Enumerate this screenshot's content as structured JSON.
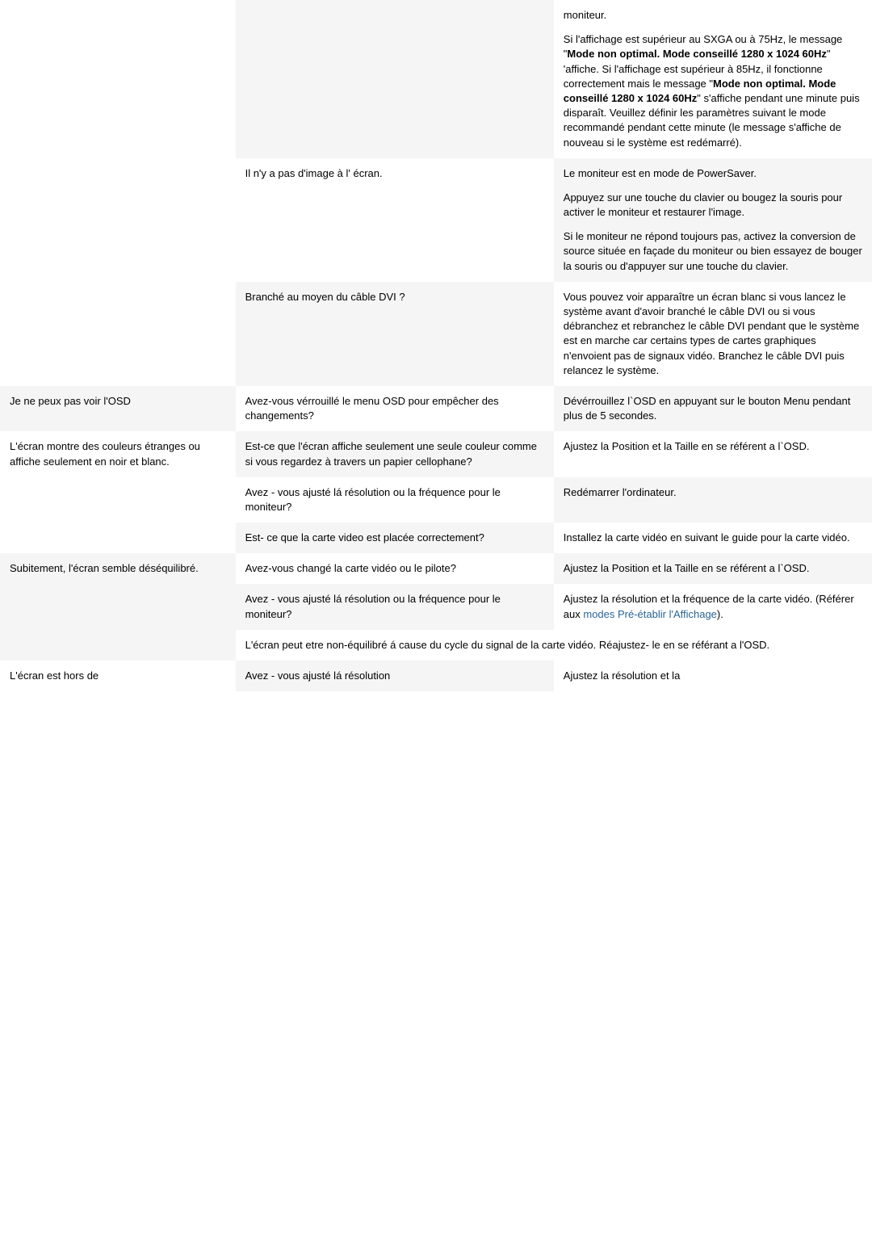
{
  "rows": [
    {
      "c1": {
        "bg": "white",
        "blocks": []
      },
      "c2": {
        "bg": "gray",
        "blocks": []
      },
      "c3": {
        "bg": "white",
        "blocks": [
          {
            "type": "p",
            "text": "moniteur."
          },
          {
            "type": "rich",
            "runs": [
              {
                "t": "Si l'affichage est supérieur au SXGA ou à 75Hz, le message \""
              },
              {
                "t": "Mode non optimal. Mode conseillé 1280 x 1024 60Hz",
                "b": true
              },
              {
                "t": "\" 'affiche. Si l'affichage est supérieur à 85Hz, il fonctionne correctement mais le message \""
              },
              {
                "t": "Mode non optimal. Mode conseillé 1280 x 1024 60Hz",
                "b": true
              },
              {
                "t": "\" s'affiche pendant une minute puis disparaît. Veuillez définir les paramètres suivant le mode recommandé pendant cette minute (le message s'affiche de nouveau si le système est redémarré)."
              }
            ]
          }
        ]
      }
    },
    {
      "c1": {
        "bg": "white",
        "blocks": []
      },
      "c2": {
        "bg": "white",
        "blocks": [
          {
            "type": "p",
            "text": "Il n'y a pas d'image à l' écran."
          }
        ]
      },
      "c3": {
        "bg": "gray",
        "blocks": [
          {
            "type": "p",
            "text": "Le moniteur est en mode de PowerSaver."
          },
          {
            "type": "p",
            "text": "Appuyez sur une touche du clavier ou bougez la souris pour activer le moniteur et restaurer l'image."
          },
          {
            "type": "p",
            "text": "Si le moniteur ne répond toujours pas, activez la conversion de source située en façade du moniteur ou bien essayez de bouger la souris ou d'appuyer sur une touche du clavier."
          }
        ]
      }
    },
    {
      "c1": {
        "bg": "white",
        "blocks": []
      },
      "c2": {
        "bg": "gray",
        "blocks": [
          {
            "type": "p",
            "text": "Branché au moyen du câble DVI ?"
          }
        ]
      },
      "c3": {
        "bg": "white",
        "blocks": [
          {
            "type": "p",
            "text": "Vous pouvez voir apparaître un écran blanc si vous lancez le système avant d'avoir branché le câble DVI ou si vous débranchez et rebranchez le câble DVI pendant que le système est en marche car certains types de cartes graphiques n'envoient pas de signaux vidéo. Branchez le câble DVI puis relancez le système."
          }
        ]
      }
    },
    {
      "c1": {
        "bg": "gray",
        "blocks": [
          {
            "type": "p",
            "text": "Je ne peux pas voir l'OSD"
          }
        ]
      },
      "c2": {
        "bg": "white",
        "blocks": [
          {
            "type": "p",
            "text": "Avez-vous vérrouillé le menu OSD pour empêcher des changements?"
          }
        ]
      },
      "c3": {
        "bg": "gray",
        "blocks": [
          {
            "type": "p",
            "text": "Dévérrouillez l`OSD en appuyant sur le bouton Menu pendant plus de 5 secondes."
          }
        ]
      }
    },
    {
      "c1": {
        "bg": "white",
        "blocks": [
          {
            "type": "p",
            "text": "L'écran montre des couleurs étranges ou affiche seulement en noir et blanc."
          }
        ]
      },
      "c2": {
        "bg": "gray",
        "blocks": [
          {
            "type": "p",
            "text": "Est-ce que l'écran affiche seulement une seule couleur comme si vous regardez à travers un papier cellophane?"
          }
        ]
      },
      "c3": {
        "bg": "white",
        "blocks": [
          {
            "type": "p",
            "text": "Ajustez la Position et la Taille en se référent a l`OSD."
          }
        ]
      }
    },
    {
      "c1": {
        "bg": "white",
        "blocks": []
      },
      "c2": {
        "bg": "white",
        "blocks": [
          {
            "type": "p",
            "text": "Avez - vous ajusté lá résolution ou la fréquence pour le moniteur?"
          }
        ]
      },
      "c3": {
        "bg": "gray",
        "blocks": [
          {
            "type": "p",
            "text": "Redémarrer l'ordinateur."
          }
        ]
      }
    },
    {
      "c1": {
        "bg": "white",
        "blocks": []
      },
      "c2": {
        "bg": "gray",
        "blocks": [
          {
            "type": "p",
            "text": "Est- ce que la carte video est placée correctement?"
          }
        ]
      },
      "c3": {
        "bg": "white",
        "blocks": [
          {
            "type": "p",
            "text": "Installez la carte vidéo en suivant le guide pour la carte vidéo."
          }
        ]
      }
    },
    {
      "c1": {
        "bg": "gray",
        "blocks": [
          {
            "type": "p",
            "text": "Subitement, l'écran semble déséquilibré."
          }
        ]
      },
      "c2": {
        "bg": "white",
        "blocks": [
          {
            "type": "p",
            "text": "Avez-vous changé la carte vidéo ou le pilote?"
          }
        ]
      },
      "c3": {
        "bg": "gray",
        "blocks": [
          {
            "type": "p",
            "text": "Ajustez la Position et la Taille en se référent a l`OSD."
          }
        ]
      }
    },
    {
      "c1": {
        "bg": "gray",
        "blocks": []
      },
      "c2": {
        "bg": "gray",
        "blocks": [
          {
            "type": "p",
            "text": "Avez - vous ajusté lá résolution ou la fréquence pour le moniteur?"
          }
        ]
      },
      "c3": {
        "bg": "white",
        "blocks": [
          {
            "type": "rich",
            "runs": [
              {
                "t": "Ajustez la résolution et la fréquence de la carte vidéo. (Référer aux "
              },
              {
                "t": "modes Pré-établir l'Affichage",
                "link": true
              },
              {
                "t": ")."
              }
            ]
          }
        ]
      }
    },
    {
      "span": true,
      "c1": {
        "bg": "gray",
        "blocks": []
      },
      "c23": {
        "bg": "white",
        "blocks": [
          {
            "type": "p",
            "text": "L'écran peut etre non-équilibré á cause du cycle du signal de la carte vidéo. Réajustez- le en se référant a l'OSD."
          }
        ]
      }
    },
    {
      "c1": {
        "bg": "white",
        "blocks": [
          {
            "type": "p",
            "text": "L'écran est hors de"
          }
        ]
      },
      "c2": {
        "bg": "gray",
        "blocks": [
          {
            "type": "p",
            "text": "Avez - vous ajusté lá résolution"
          }
        ]
      },
      "c3": {
        "bg": "white",
        "blocks": [
          {
            "type": "p",
            "text": "Ajustez la résolution et la"
          }
        ]
      }
    }
  ]
}
